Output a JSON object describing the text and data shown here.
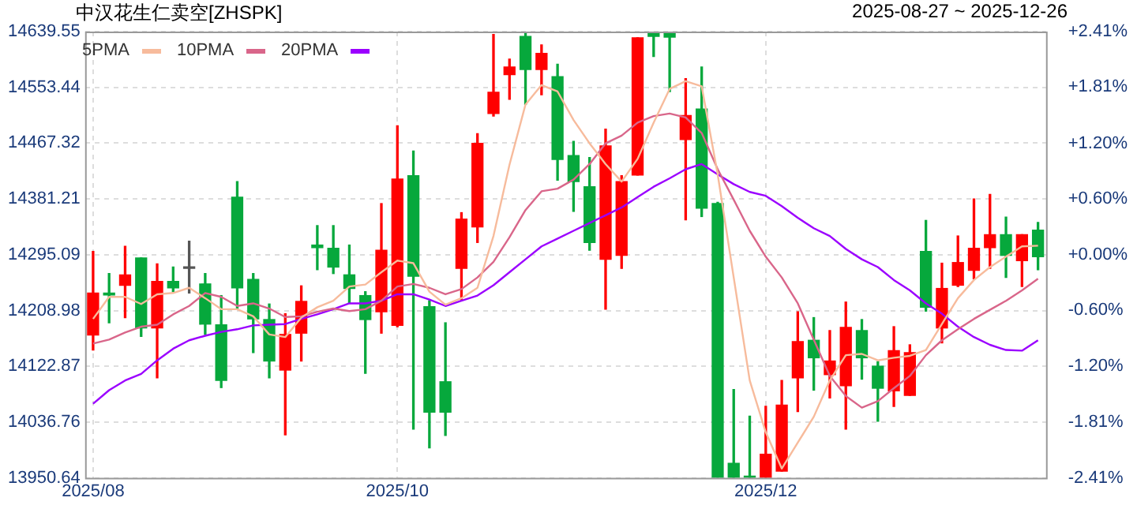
{
  "chart_data": {
    "type": "candlestick",
    "title": "中汉花生仁卖空[ZHSPK]",
    "subtitle": "2025-08-27 ~ 2025-12-26",
    "categories": [
      "2025/08",
      null,
      null,
      null,
      null,
      null,
      null,
      null,
      null,
      null,
      null,
      null,
      null,
      null,
      null,
      null,
      null,
      null,
      null,
      "2025/10",
      null,
      null,
      null,
      null,
      null,
      null,
      null,
      null,
      null,
      null,
      null,
      null,
      null,
      null,
      null,
      null,
      null,
      null,
      null,
      null,
      null,
      null,
      "2025/12",
      null,
      null,
      null,
      null,
      null,
      null,
      null,
      null,
      null,
      null,
      null,
      null,
      null,
      null,
      null,
      null,
      null
    ],
    "ohlc": [
      [
        14171,
        14300,
        14148,
        14236
      ],
      [
        14236,
        14266,
        14190,
        14233
      ],
      [
        14248,
        14308,
        14198,
        14264
      ],
      [
        14290,
        14290,
        14169,
        14182
      ],
      [
        14182,
        14281,
        14105,
        14254
      ],
      [
        14254,
        14276,
        14238,
        14244
      ],
      [
        14274,
        14316,
        14236,
        14274
      ],
      [
        14250,
        14266,
        14172,
        14188
      ],
      [
        14187,
        14232,
        14090,
        14101
      ],
      [
        14384,
        14408,
        14212,
        14244
      ],
      [
        14257,
        14266,
        14144,
        14196
      ],
      [
        14195,
        14219,
        14105,
        14131
      ],
      [
        14117,
        14204,
        14017,
        14172
      ],
      [
        14174,
        14247,
        14131,
        14223
      ],
      [
        14310,
        14340,
        14272,
        14306
      ],
      [
        14305,
        14340,
        14266,
        14276
      ],
      [
        14264,
        14310,
        14220,
        14243
      ],
      [
        14232,
        14238,
        14112,
        14195
      ],
      [
        14207,
        14374,
        14174,
        14302
      ],
      [
        14186,
        14494,
        14184,
        14412
      ],
      [
        14417,
        14455,
        14026,
        14262
      ],
      [
        14215,
        14224,
        13997,
        14052
      ],
      [
        14099,
        14190,
        14016,
        14052
      ],
      [
        14274,
        14360,
        14224,
        14350
      ],
      [
        14338,
        14482,
        14314,
        14467
      ],
      [
        14513,
        14635,
        14509,
        14546
      ],
      [
        14573,
        14597,
        14535,
        14585
      ],
      [
        14632,
        14637,
        14527,
        14581
      ],
      [
        14581,
        14619,
        14542,
        14606
      ],
      [
        14570,
        14589,
        14410,
        14442
      ],
      [
        14448,
        14470,
        14362,
        14408
      ],
      [
        14400,
        14445,
        14302,
        14314
      ],
      [
        14288,
        14489,
        14211,
        14463
      ],
      [
        14294,
        14417,
        14274,
        14408
      ],
      [
        14418,
        14630,
        14418,
        14630
      ],
      [
        14638,
        14639,
        14601,
        14632
      ],
      [
        14639,
        14639,
        14547,
        14631
      ],
      [
        14473,
        14567,
        14349,
        14510
      ],
      [
        14520,
        14585,
        14354,
        14367
      ],
      [
        14374,
        14376,
        13951,
        13951
      ],
      [
        13973,
        14087,
        13951,
        13951
      ],
      [
        13953,
        14046,
        13951,
        13951
      ],
      [
        13951,
        14061,
        13951,
        13987
      ],
      [
        13961,
        14101,
        13961,
        14063
      ],
      [
        14105,
        14207,
        14053,
        14161
      ],
      [
        14163,
        14198,
        14086,
        14136
      ],
      [
        14110,
        14178,
        14074,
        14131
      ],
      [
        14093,
        14222,
        14026,
        14183
      ],
      [
        14178,
        14195,
        14103,
        14136
      ],
      [
        14123,
        14130,
        14038,
        14089
      ],
      [
        14085,
        14184,
        14061,
        14147
      ],
      [
        14078,
        14156,
        14078,
        14144
      ],
      [
        14300,
        14348,
        14208,
        14214
      ],
      [
        14182,
        14282,
        14159,
        14243
      ],
      [
        14248,
        14324,
        14246,
        14283
      ],
      [
        14271,
        14381,
        14258,
        14305
      ],
      [
        14306,
        14388,
        14274,
        14326
      ],
      [
        14326,
        14353,
        14260,
        14294
      ],
      [
        14286,
        14326,
        14246,
        14326
      ],
      [
        14333,
        14345,
        14272,
        14292
      ]
    ],
    "colors": [
      "#ff0000",
      "#06a83c",
      "#ff0000",
      "#06a83c",
      "#ff0000",
      "#06a83c",
      "#555555",
      "#06a83c",
      "#06a83c",
      "#06a83c",
      "#06a83c",
      "#06a83c",
      "#ff0000",
      "#ff0000",
      "#06a83c",
      "#06a83c",
      "#06a83c",
      "#06a83c",
      "#ff0000",
      "#ff0000",
      "#06a83c",
      "#06a83c",
      "#06a83c",
      "#ff0000",
      "#ff0000",
      "#ff0000",
      "#ff0000",
      "#06a83c",
      "#ff0000",
      "#06a83c",
      "#06a83c",
      "#06a83c",
      "#ff0000",
      "#ff0000",
      "#ff0000",
      "#06a83c",
      "#06a83c",
      "#ff0000",
      "#06a83c",
      "#06a83c",
      "#06a83c",
      "#06a83c",
      "#ff0000",
      "#ff0000",
      "#ff0000",
      "#06a83c",
      "#ff0000",
      "#ff0000",
      "#06a83c",
      "#06a83c",
      "#ff0000",
      "#ff0000",
      "#06a83c",
      "#ff0000",
      "#ff0000",
      "#ff0000",
      "#ff0000",
      "#06a83c",
      "#ff0000",
      "#06a83c"
    ],
    "series": [
      {
        "name": "5PMA",
        "type": "line",
        "color": "#f7bb9c",
        "values": [
          14196,
          14230,
          14230,
          14219,
          14234,
          14236,
          14244,
          14228,
          14211,
          14211,
          14200,
          14172,
          14168,
          14198,
          14214,
          14224,
          14246,
          14249,
          14268,
          14286,
          14282,
          14238,
          14218,
          14228,
          14244,
          14324,
          14434,
          14527,
          14557,
          14547,
          14503,
          14467,
          14435,
          14408,
          14443,
          14499,
          14551,
          14563,
          14555,
          14419,
          14260,
          14101,
          14021,
          13965,
          14005,
          14045,
          14101,
          14140,
          14142,
          14132,
          14136,
          14139,
          14148,
          14188,
          14228,
          14256,
          14276,
          14292,
          14308,
          14309
        ]
      },
      {
        "name": "10PMA",
        "type": "line",
        "color": "#d9668a",
        "values": [
          14158,
          14164,
          14175,
          14184,
          14187,
          14203,
          14216,
          14236,
          14230,
          14216,
          14220,
          14212,
          14199,
          14200,
          14207,
          14212,
          14208,
          14211,
          14224,
          14246,
          14250,
          14244,
          14234,
          14242,
          14260,
          14284,
          14322,
          14364,
          14393,
          14397,
          14411,
          14435,
          14467,
          14479,
          14499,
          14509,
          14513,
          14507,
          14483,
          14427,
          14380,
          14332,
          14292,
          14260,
          14220,
          14164,
          14108,
          14077,
          14059,
          14069,
          14089,
          14108,
          14140,
          14163,
          14180,
          14196,
          14210,
          14224,
          14240,
          14258
        ]
      },
      {
        "name": "20PMA",
        "type": "line",
        "color": "#9b00ff",
        "values": [
          14065,
          14086,
          14101,
          14111,
          14132,
          14150,
          14163,
          14170,
          14176,
          14180,
          14186,
          14187,
          14188,
          14196,
          14203,
          14211,
          14220,
          14220,
          14224,
          14234,
          14234,
          14226,
          14216,
          14224,
          14232,
          14248,
          14268,
          14288,
          14308,
          14320,
          14332,
          14344,
          14356,
          14368,
          14384,
          14400,
          14413,
          14427,
          14435,
          14419,
          14404,
          14392,
          14386,
          14370,
          14352,
          14336,
          14324,
          14304,
          14288,
          14276,
          14256,
          14240,
          14220,
          14204,
          14184,
          14168,
          14156,
          14148,
          14147,
          14163
        ]
      }
    ],
    "ylim": [
      13950.64,
      14639.55
    ],
    "yticks": [
      13950.64,
      14036.76,
      14122.87,
      14208.98,
      14295.09,
      14381.21,
      14467.32,
      14553.44,
      14639.55
    ],
    "y2lim": [
      -2.41,
      2.41
    ],
    "y2ticks": [
      {
        "value": -2.41,
        "label": "-2.41%"
      },
      {
        "value": -1.81,
        "label": "-1.81%"
      },
      {
        "value": -1.2,
        "label": "-1.20%"
      },
      {
        "value": -0.6,
        "label": "-0.60%"
      },
      {
        "value": 0,
        "label": "+0.00%"
      },
      {
        "value": 0.6,
        "label": "+0.60%"
      },
      {
        "value": 1.2,
        "label": "+1.20%"
      },
      {
        "value": 1.81,
        "label": "+1.81%"
      },
      {
        "value": 2.41,
        "label": "+2.41%"
      }
    ],
    "grid": true,
    "legend": "top left",
    "marker": "none"
  }
}
